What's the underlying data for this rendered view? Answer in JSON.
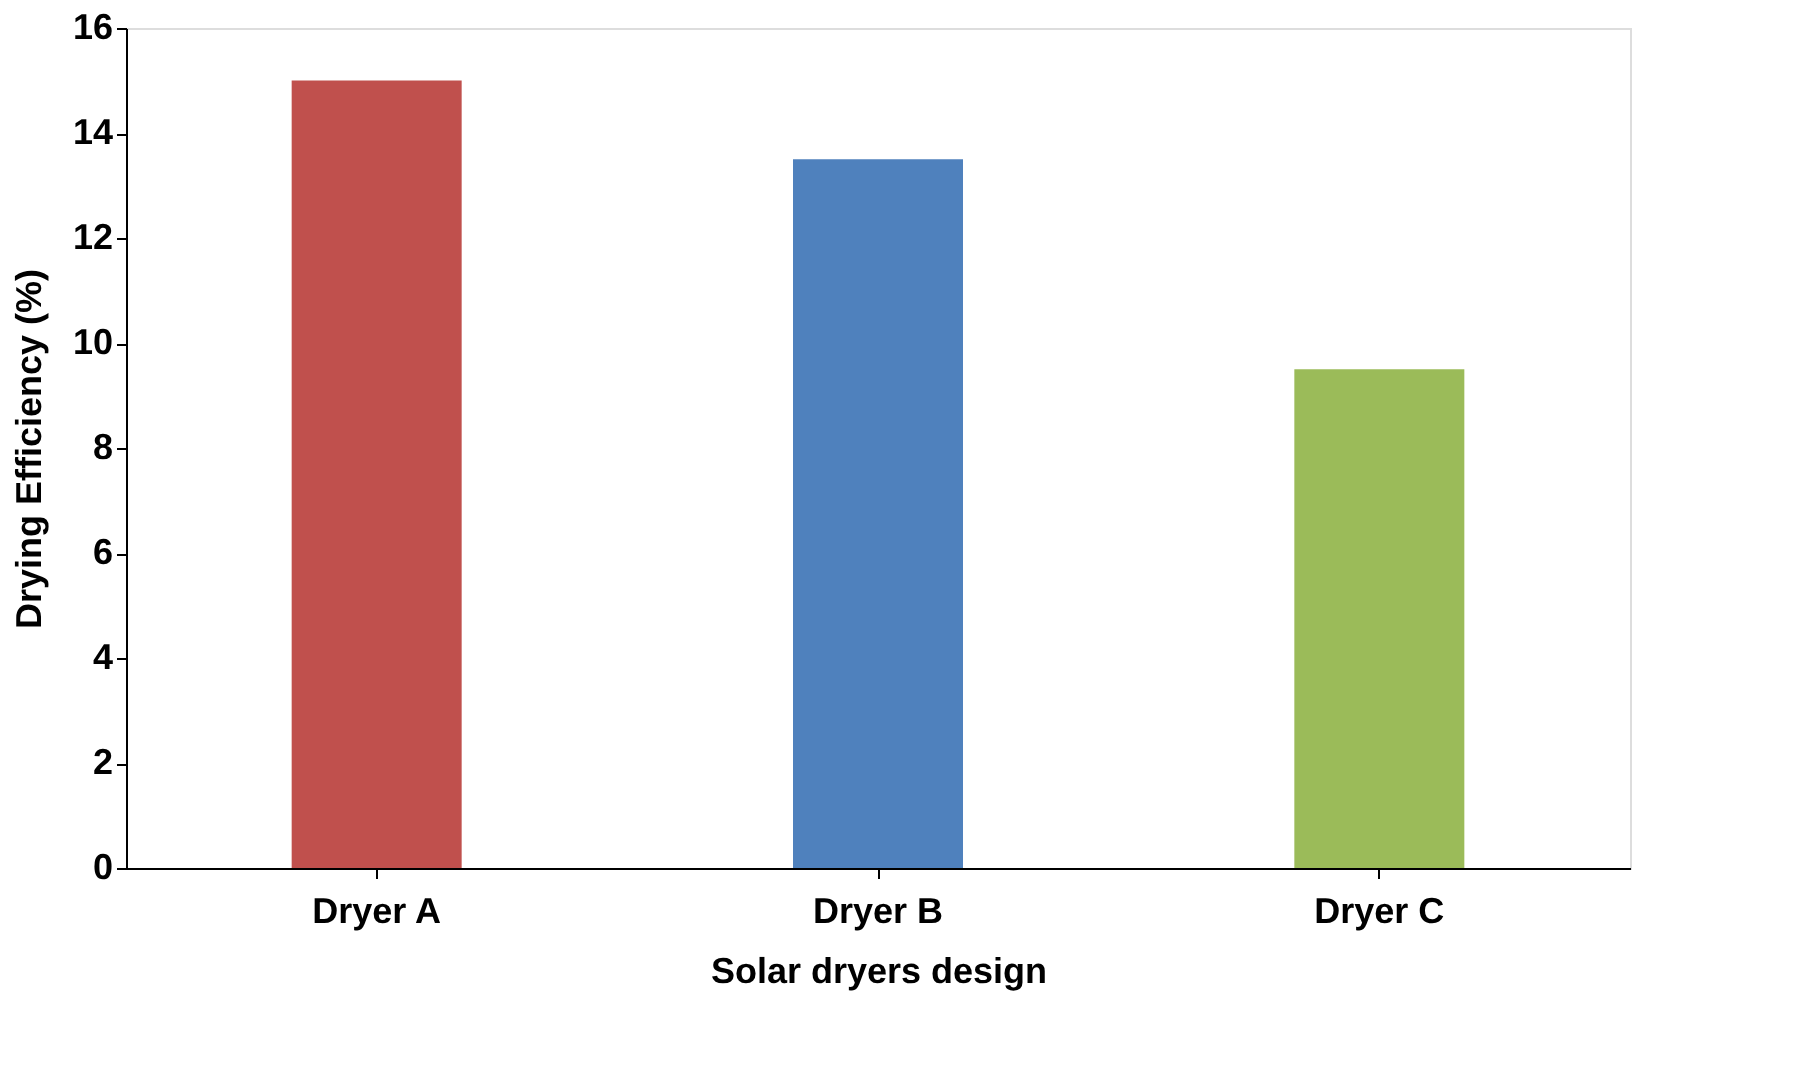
{
  "chart_data": {
    "type": "bar",
    "categories": [
      "Dryer A",
      "Dryer B",
      "Dryer C"
    ],
    "values": [
      15,
      13.5,
      9.5
    ],
    "colors": [
      "#c0504d",
      "#4f81bd",
      "#9bbb59"
    ],
    "xlabel": "Solar dryers design",
    "ylabel": "Drying Efficiency (%)",
    "ylim": [
      0,
      16
    ],
    "yticks": [
      0,
      2,
      4,
      6,
      8,
      10,
      12,
      14,
      16
    ]
  }
}
